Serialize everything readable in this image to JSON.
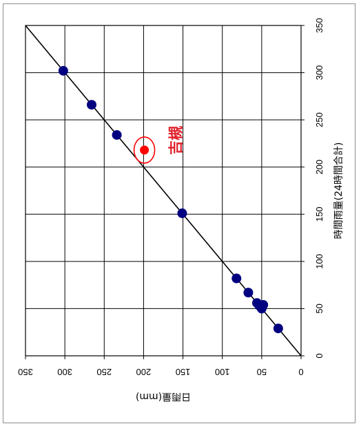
{
  "chart_data": {
    "type": "scatter",
    "title": "",
    "orientation": "rotated-90-clockwise",
    "xlabel": "時間雨量(24時間合計)",
    "ylabel": "日雨量(mm)",
    "xlim": [
      0,
      350
    ],
    "ylim": [
      0,
      350
    ],
    "x_ticks": [
      "0",
      "50",
      "100",
      "150",
      "200",
      "250",
      "300",
      "350"
    ],
    "y_ticks": [
      "0",
      "50",
      "100",
      "150",
      "200",
      "250",
      "300",
      "350"
    ],
    "grid": true,
    "legend": "none",
    "colors": {
      "points": "#000080",
      "highlight": "#ff0000",
      "annotation": "#e0202a",
      "line": "#000000"
    },
    "reference_line": {
      "x": [
        0,
        350
      ],
      "y": [
        0,
        350
      ]
    },
    "series": [
      {
        "x": [
          302,
          266,
          234,
          151,
          82,
          67,
          56,
          53,
          50,
          54,
          29
        ],
        "y": [
          302,
          266,
          234,
          151,
          82,
          67,
          56,
          53,
          50,
          48,
          29
        ]
      }
    ],
    "highlight": {
      "x": 218,
      "y": 199
    },
    "annotations": [
      {
        "text": "吉槻",
        "x": 218,
        "y": 199
      }
    ]
  }
}
